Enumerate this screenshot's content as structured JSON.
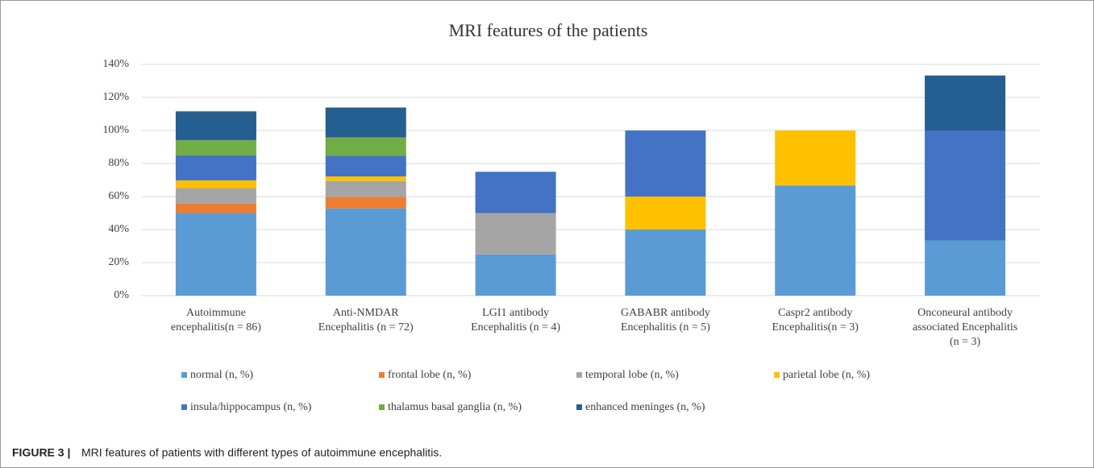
{
  "chart_data": {
    "type": "stacked_bar",
    "title": "MRI features  of the patients",
    "categories": [
      "Autoimmune\nencephalitis(n = 86)",
      "Anti-NMDAR\nEncephalitis (n = 72)",
      "LGI1 antibody\nEncephalitis  (n = 4)",
      "GABABR antibody\nEncephalitis (n = 5)",
      "Caspr2 antibody\nEncephalitis(n = 3)",
      "Onconeural antibody\nassociated Encephalitis\n(n = 3)"
    ],
    "series": [
      {
        "name": "normal (n, %)",
        "color": "#5b9bd5",
        "values": [
          50.0,
          52.8,
          25,
          40,
          66.7,
          33.3
        ]
      },
      {
        "name": "frontal lobe (n, %)",
        "color": "#ed7d31",
        "values": [
          5.8,
          6.9,
          0,
          0,
          0,
          0
        ]
      },
      {
        "name": "temporal lobe (n, %)",
        "color": "#a5a5a5",
        "values": [
          9.3,
          9.7,
          25,
          0,
          0,
          0
        ]
      },
      {
        "name": "parietal lobe (n, %)",
        "color": "#ffc000",
        "values": [
          4.7,
          2.8,
          0,
          20,
          33.3,
          0
        ]
      },
      {
        "name": "insula/hippocampus (n, %)",
        "color": "#4472c4",
        "values": [
          15.1,
          12.5,
          25,
          40,
          0,
          66.7
        ]
      },
      {
        "name": "thalamus basal ganglia (n, %)",
        "color": "#70ad47",
        "values": [
          9.3,
          11.1,
          0,
          0,
          0,
          0
        ]
      },
      {
        "name": "enhanced meninges (n, %)",
        "color": "#255e91",
        "values": [
          17.4,
          18.1,
          0,
          0,
          0,
          33.3
        ]
      }
    ],
    "ylim": [
      0,
      140
    ],
    "yticks": [
      {
        "value": 0,
        "label": "0%"
      },
      {
        "value": 20,
        "label": "20%"
      },
      {
        "value": 40,
        "label": "40%"
      },
      {
        "value": 60,
        "label": "60%"
      },
      {
        "value": 80,
        "label": "80%"
      },
      {
        "value": 100,
        "label": "100%"
      },
      {
        "value": 120,
        "label": "120%"
      },
      {
        "value": 140,
        "label": "140%"
      }
    ],
    "grid": true
  },
  "caption": {
    "label": "FIGURE 3 |",
    "text": "MRI features of patients with different types of autoimmune encephalitis."
  }
}
